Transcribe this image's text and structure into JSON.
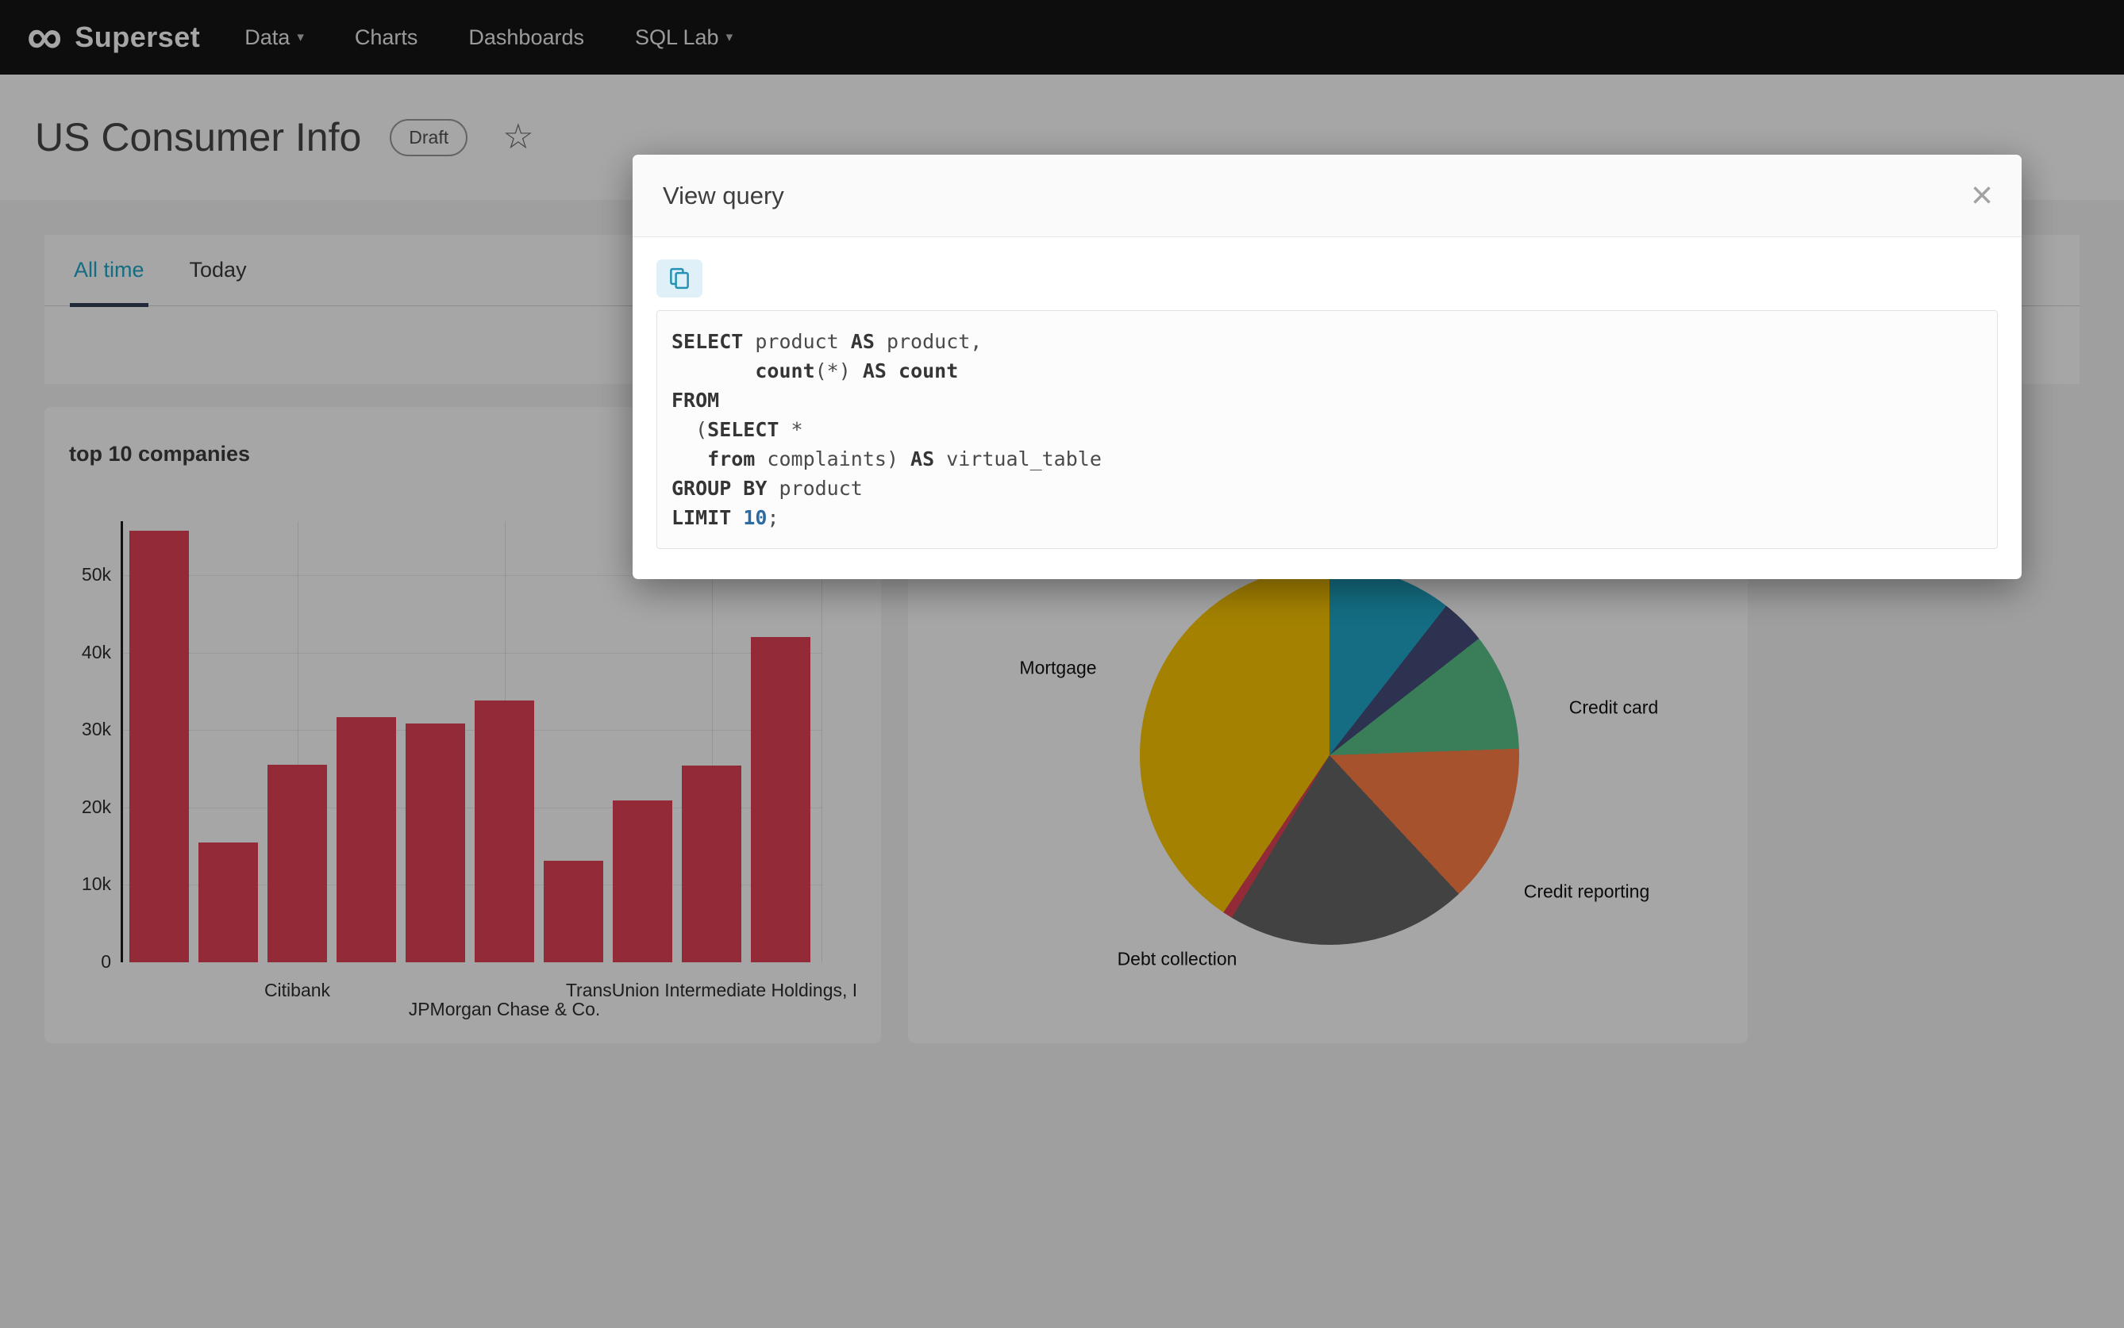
{
  "navbar": {
    "brand": "Superset",
    "items": [
      {
        "label": "Data",
        "has_caret": true
      },
      {
        "label": "Charts",
        "has_caret": false
      },
      {
        "label": "Dashboards",
        "has_caret": false
      },
      {
        "label": "SQL Lab",
        "has_caret": true
      }
    ]
  },
  "header": {
    "title": "US Consumer Info",
    "status_badge": "Draft",
    "favorite_icon": "star-outline"
  },
  "tabs": [
    {
      "label": "All time",
      "active": true
    },
    {
      "label": "Today",
      "active": false
    }
  ],
  "modal": {
    "title": "View query",
    "close_icon": "×",
    "copy_icon": "copy-clipboard-icon",
    "sql_lines": [
      [
        {
          "t": "SELECT",
          "s": "k"
        },
        {
          "t": " product ",
          "s": "p"
        },
        {
          "t": "AS",
          "s": "k"
        },
        {
          "t": " product,",
          "s": "p"
        }
      ],
      [
        {
          "t": "       ",
          "s": "p"
        },
        {
          "t": "count",
          "s": "k"
        },
        {
          "t": "(*) ",
          "s": "p"
        },
        {
          "t": "AS",
          "s": "k"
        },
        {
          "t": " ",
          "s": "p"
        },
        {
          "t": "count",
          "s": "k"
        }
      ],
      [
        {
          "t": "FROM",
          "s": "k"
        }
      ],
      [
        {
          "t": "  (",
          "s": "p"
        },
        {
          "t": "SELECT",
          "s": "k"
        },
        {
          "t": " *",
          "s": "p"
        }
      ],
      [
        {
          "t": "   ",
          "s": "p"
        },
        {
          "t": "from",
          "s": "k"
        },
        {
          "t": " complaints) ",
          "s": "p"
        },
        {
          "t": "AS",
          "s": "k"
        },
        {
          "t": " virtual_table",
          "s": "p"
        }
      ],
      [
        {
          "t": "GROUP BY",
          "s": "k"
        },
        {
          "t": " product",
          "s": "p"
        }
      ],
      [
        {
          "t": "LIMIT",
          "s": "k"
        },
        {
          "t": " ",
          "s": "p"
        },
        {
          "t": "10",
          "s": "n"
        },
        {
          "t": ";",
          "s": "p"
        }
      ]
    ]
  },
  "colors": {
    "accent": "#1FA8C9",
    "tab_underline": "#343E56",
    "bar": "#E04355"
  },
  "chart_data": [
    {
      "type": "bar",
      "title": "top 10 companies",
      "xlabel": "",
      "ylabel": "",
      "ylim": [
        0,
        57000
      ],
      "grid": true,
      "bar_color": "#E04355",
      "yticks": [
        {
          "label": "0",
          "value": 0
        },
        {
          "label": "10k",
          "value": 10000
        },
        {
          "label": "20k",
          "value": 20000
        },
        {
          "label": "30k",
          "value": 30000
        },
        {
          "label": "40k",
          "value": 40000
        },
        {
          "label": "50k",
          "value": 50000
        }
      ],
      "values": [
        55800,
        15500,
        25500,
        31700,
        30900,
        33800,
        13100,
        20900,
        25400,
        42000
      ],
      "x_tick_labels": [
        {
          "text": "Citibank",
          "bar": 3,
          "row": 1
        },
        {
          "text": "JPMorgan Chase & Co.",
          "bar": 6,
          "row": 2
        },
        {
          "text": "TransUnion Intermediate Holdings, I",
          "bar": 9,
          "row": 1
        }
      ]
    },
    {
      "type": "pie",
      "title": "",
      "legend_position": "none",
      "slices": [
        {
          "label": "",
          "start_deg": 0,
          "end_deg": 38,
          "color": "#1FA8C9"
        },
        {
          "label": "",
          "start_deg": 38,
          "end_deg": 52,
          "color": "#454E7C"
        },
        {
          "label": "Credit card",
          "start_deg": 52,
          "end_deg": 88,
          "color": "#5AC189"
        },
        {
          "label": "Credit reporting",
          "start_deg": 88,
          "end_deg": 137,
          "color": "#FF7F44"
        },
        {
          "label": "Debt collection",
          "start_deg": 137,
          "end_deg": 211,
          "color": "#666666"
        },
        {
          "label": "",
          "start_deg": 211,
          "end_deg": 214,
          "color": "#E04355"
        },
        {
          "label": "Mortgage",
          "start_deg": 214,
          "end_deg": 360,
          "color": "#FCC700"
        }
      ]
    }
  ]
}
